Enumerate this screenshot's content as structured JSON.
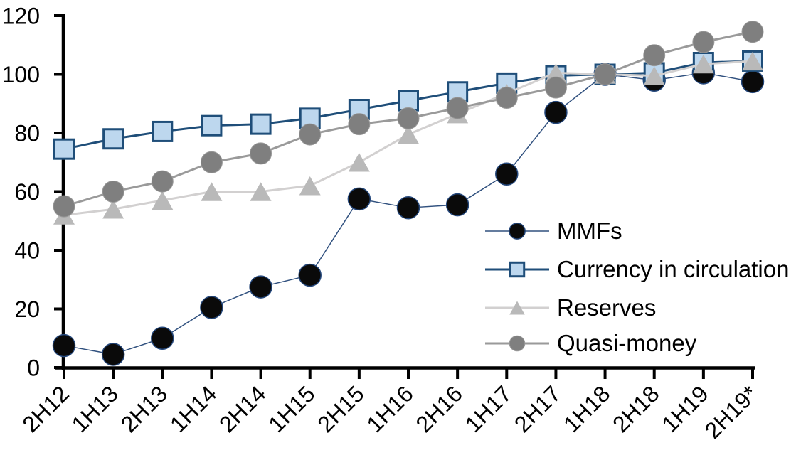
{
  "chart_data": {
    "type": "line",
    "title": "",
    "xlabel": "",
    "ylabel": "",
    "ylim": [
      0,
      120
    ],
    "ytick_step": 20,
    "yticks": [
      "0",
      "20",
      "40",
      "60",
      "80",
      "100",
      "120"
    ],
    "grid": false,
    "legend_position": "inside-right",
    "background": "#ffffff",
    "axis_color": "#000000",
    "categories": [
      "2H12",
      "1H13",
      "2H13",
      "1H14",
      "2H14",
      "1H15",
      "2H15",
      "1H16",
      "2H16",
      "1H17",
      "2H17",
      "1H18",
      "2H18",
      "1H19",
      "2H19*"
    ],
    "series": [
      {
        "name": "MMFs",
        "marker": "circle",
        "marker_size": 31,
        "marker_fill": "#0a0a0a",
        "marker_stroke": "#24477b",
        "marker_stroke_width": 1.5,
        "line_color": "#31517f",
        "line_width": 1.5,
        "values": [
          7.5,
          4.5,
          10,
          20.5,
          27.5,
          31.5,
          57.5,
          54.5,
          55.5,
          66,
          87,
          100,
          98,
          100.5,
          97.5
        ]
      },
      {
        "name": "Currency in circulation",
        "marker": "square",
        "marker_size": 27,
        "marker_fill": "#bdd7ee",
        "marker_stroke": "#1f4e79",
        "marker_stroke_width": 3,
        "line_color": "#1f4e79",
        "line_width": 3,
        "values": [
          74.5,
          78,
          80.5,
          82.5,
          83,
          85,
          88,
          91,
          94,
          97,
          99.5,
          100,
          100.5,
          104,
          104.5
        ]
      },
      {
        "name": "Reserves",
        "marker": "triangle",
        "marker_size": 30,
        "marker_fill": "#b9b9b9",
        "marker_stroke": "none",
        "marker_stroke_width": 0,
        "line_color": "#d2d0d0",
        "line_width": 3,
        "values": [
          52,
          54,
          57,
          60,
          60,
          62,
          70,
          79.5,
          86.5,
          93.5,
          100.5,
          100,
          99.5,
          103.5,
          104.5
        ]
      },
      {
        "name": "Quasi-money",
        "marker": "circle",
        "marker_size": 30,
        "marker_fill": "#7f7f7f",
        "marker_stroke": "#9a9a9a",
        "marker_stroke_width": 1,
        "line_color": "#9a9a9a",
        "line_width": 3,
        "values": [
          55,
          60,
          63.5,
          70,
          73,
          79.5,
          83,
          85,
          88.5,
          92,
          95.5,
          100,
          106.5,
          111,
          114.5
        ]
      }
    ]
  }
}
